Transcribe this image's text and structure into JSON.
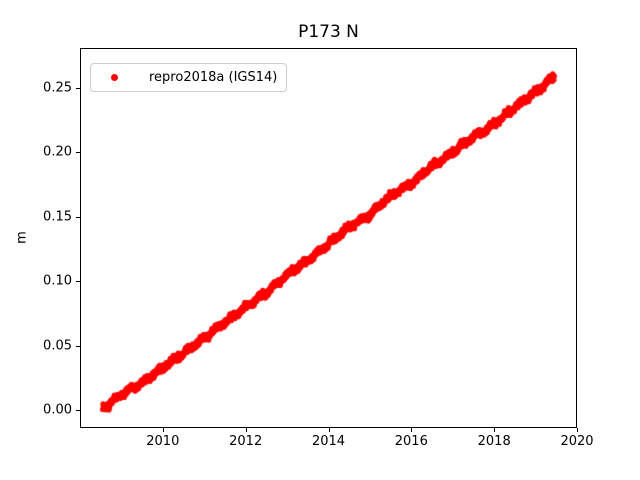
{
  "figure": {
    "background": "#ffffff",
    "text_color": "#000000"
  },
  "chart_data": {
    "type": "scatter",
    "title": "P173 N",
    "xlabel": "",
    "ylabel": "m",
    "grid": false,
    "xlim": [
      2008.0,
      2020.0
    ],
    "ylim": [
      -0.014,
      0.281
    ],
    "xticks": [
      2010,
      2012,
      2014,
      2016,
      2018,
      2020
    ],
    "xtick_labels": [
      "2010",
      "2012",
      "2014",
      "2016",
      "2018",
      "2020"
    ],
    "yticks": [
      0.0,
      0.05,
      0.1,
      0.15,
      0.2,
      0.25
    ],
    "ytick_labels": [
      "0.00",
      "0.05",
      "0.10",
      "0.15",
      "0.20",
      "0.25"
    ],
    "legend": {
      "position": "upper left",
      "entries": [
        {
          "label": "repro2018a (IGS14)",
          "color": "#ff0000",
          "marker": "dot"
        }
      ]
    },
    "series": [
      {
        "name": "repro2018a (IGS14)",
        "color": "#ff0000",
        "marker": "dot",
        "marker_radius_px": 2.6,
        "x_start": 2008.55,
        "x_end": 2019.45,
        "trend_m_per_yr": 0.0237,
        "anchors_x": [
          2008.55,
          2009.0,
          2009.5,
          2010.0,
          2010.5,
          2011.0,
          2011.5,
          2012.0,
          2012.5,
          2013.0,
          2013.5,
          2014.0,
          2014.5,
          2015.0,
          2015.5,
          2016.0,
          2016.5,
          2017.0,
          2017.5,
          2018.0,
          2018.5,
          2019.0,
          2019.45
        ],
        "anchors_y": [
          0.001,
          0.012,
          0.021,
          0.033,
          0.044,
          0.056,
          0.068,
          0.08,
          0.091,
          0.105,
          0.116,
          0.129,
          0.142,
          0.152,
          0.166,
          0.176,
          0.189,
          0.2,
          0.212,
          0.222,
          0.235,
          0.247,
          0.259
        ],
        "points_per_year": 300,
        "jitter_m": 0.0011
      }
    ]
  }
}
